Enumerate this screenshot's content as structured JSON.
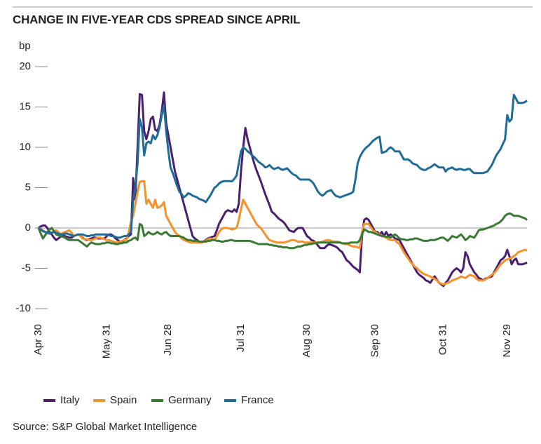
{
  "chart_data": {
    "type": "line",
    "title": "CHANGE IN FIVE-YEAR CDS SPREAD SINCE APRIL",
    "y_label": "bp",
    "source": "Source: S&P Global Market Intelligence",
    "ylim": [
      -10,
      20
    ],
    "yticks": [
      -10,
      -5,
      0,
      5,
      10,
      15,
      20
    ],
    "categories": [
      "Apr 30",
      null,
      null,
      null,
      null,
      null,
      null,
      null,
      null,
      null,
      null,
      null,
      null,
      null,
      null,
      null,
      null,
      null,
      null,
      null,
      null,
      null,
      null,
      null,
      null,
      null,
      null,
      null,
      null,
      null,
      null,
      "May 31",
      null,
      null,
      null,
      null,
      null,
      null,
      null,
      null,
      null,
      null,
      null,
      null,
      null,
      null,
      null,
      null,
      null,
      null,
      null,
      null,
      null,
      null,
      null,
      null,
      null,
      null,
      null,
      "Jun 28",
      null,
      null,
      null,
      null,
      null,
      null,
      null,
      null,
      null,
      null,
      null,
      null,
      null,
      null,
      null,
      null,
      null,
      null,
      null,
      null,
      null,
      null,
      null,
      null,
      null,
      null,
      null,
      null,
      null,
      null,
      null,
      null,
      "Jul 31",
      null,
      null,
      null,
      null,
      null,
      null,
      null,
      null,
      null,
      null,
      null,
      null,
      null,
      null,
      null,
      null,
      null,
      null,
      null,
      null,
      null,
      null,
      null,
      null,
      null,
      null,
      null,
      null,
      null,
      "Aug 30",
      null,
      null,
      null,
      null,
      null,
      null,
      null,
      null,
      null,
      null,
      null,
      null,
      null,
      null,
      null,
      null,
      null,
      null,
      null,
      null,
      null,
      null,
      null,
      null,
      null,
      null,
      null,
      null,
      null,
      null,
      "Sep 30",
      null,
      null,
      null,
      null,
      null,
      null,
      null,
      null,
      null,
      null,
      null,
      null,
      null,
      null,
      null,
      null,
      null,
      null,
      null,
      null,
      null,
      null,
      null,
      null,
      null,
      null,
      null,
      null,
      null,
      null,
      "Oct 31",
      null,
      null,
      null,
      null,
      null,
      null,
      null,
      null,
      null,
      null,
      null,
      null,
      null,
      null,
      null,
      null,
      null,
      null,
      null,
      null,
      null,
      null,
      null,
      null,
      null,
      null,
      null,
      null,
      "Nov 29",
      null,
      null,
      null,
      null,
      null,
      null,
      null,
      null,
      null
    ],
    "series": [
      {
        "name": "Italy",
        "color": "#4a1f6e",
        "values": [
          0,
          0.2,
          0.3,
          0.3,
          0,
          -0.5,
          -0.8,
          -1.2,
          -1.5,
          -1.3,
          -1.1,
          -1,
          -1,
          -1.1,
          -1.2,
          -1.2,
          -1,
          -0.9,
          -0.8,
          -1,
          -1.2,
          -1.4,
          -1.5,
          -1.4,
          -1.3,
          -1.2,
          -1.2,
          -1.3,
          -1.3,
          -1.3,
          -1.3,
          -1,
          -0.8,
          -0.8,
          -1,
          -1.3,
          -1.5,
          -1.7,
          -1.8,
          -1.5,
          -1.3,
          -1,
          -0.8,
          6.2,
          3.5,
          10,
          16.6,
          16.5,
          12,
          11,
          12,
          13.5,
          13.8,
          12.2,
          12,
          12.8,
          14.5,
          16.8,
          13,
          11.5,
          10,
          8.5,
          7,
          6,
          5,
          4,
          3,
          2,
          1,
          0,
          -1,
          -1.3,
          -1.5,
          -1.7,
          -1.8,
          -1.7,
          -1.5,
          -1.3,
          -1.2,
          -1.1,
          -1,
          -0.3,
          0.5,
          1,
          1.5,
          2,
          2.2,
          2.1,
          2,
          2.3,
          2,
          3,
          7,
          10,
          12.4,
          11,
          10,
          9,
          8,
          7.2,
          6.5,
          5.8,
          5,
          4.2,
          3.5,
          2.8,
          2,
          1.8,
          1.5,
          1.2,
          1,
          0.8,
          0.5,
          0.1,
          -0.3,
          -0.4,
          -0.5,
          -0.2,
          0,
          0,
          0,
          -0.5,
          -1,
          -1.2,
          -1.5,
          -1.6,
          -1.8,
          -2.2,
          -2.5,
          -2.5,
          -2.5,
          -2.2,
          -2,
          -2.1,
          -2.2,
          -2.3,
          -2.5,
          -2.8,
          -3,
          -3.5,
          -4,
          -4.2,
          -4.5,
          -4.8,
          -5,
          -5.2,
          -5.5,
          -1,
          1,
          1.2,
          1,
          0.5,
          0,
          -0.5,
          -0.5,
          -0.8,
          -0.5,
          -1,
          -0.5,
          -1,
          -0.8,
          -1,
          -1.3,
          -1.4,
          -1.5,
          -2,
          -2.5,
          -3,
          -3.5,
          -4,
          -4.5,
          -5,
          -5.5,
          -5.8,
          -6,
          -6.2,
          -6.5,
          -6.6,
          -6.8,
          -6.4,
          -6,
          -6.4,
          -6.8,
          -7,
          -7.2,
          -6.8,
          -6.5,
          -6,
          -5.5,
          -5.2,
          -5,
          -5.2,
          -5.5,
          -5,
          -3,
          -3.5,
          -4.5,
          -5,
          -5.5,
          -5.8,
          -6.2,
          -6.3,
          -6.5,
          -6.3,
          -6.2,
          -6.1,
          -6,
          -5.5,
          -5,
          -4.5,
          -4,
          -3.8,
          -3.5,
          -2.7,
          -3.5,
          -4.5,
          -4,
          -3.8,
          -4.5,
          -4.5,
          -4.5,
          -4.4,
          -4.3
        ]
      },
      {
        "name": "Spain",
        "color": "#f5922a",
        "values": [
          0,
          -0.1,
          -0.3,
          -0.5,
          -0.6,
          -0.7,
          -0.6,
          -0.4,
          -0.3,
          -0.5,
          -0.8,
          -0.6,
          -0.5,
          -0.4,
          -0.3,
          -0.6,
          -1,
          -0.9,
          -0.8,
          -1,
          -1.3,
          -1.4,
          -1.4,
          -1.5,
          -1.5,
          -1.4,
          -1.3,
          -1.2,
          -1.2,
          -1.3,
          -1.4,
          -1.5,
          -1.5,
          -1.6,
          -1.7,
          -1.8,
          -1.8,
          -1.7,
          -1.6,
          -1.5,
          -1.5,
          -0.5,
          0.8,
          1.5,
          3,
          4.5,
          5.7,
          5.8,
          5.8,
          3,
          3.5,
          3,
          2.5,
          3.5,
          2.5,
          2.6,
          2.8,
          3.2,
          1.5,
          1,
          0.5,
          0,
          -0.5,
          -0.8,
          -1,
          -1.3,
          -1.5,
          -1.6,
          -1.7,
          -1.8,
          -1.8,
          -1.8,
          -1.8,
          -1.8,
          -1.8,
          -1.7,
          -1.6,
          -1.4,
          -1.3,
          -1.4,
          -1.5,
          -1,
          -0.5,
          -0.2,
          0,
          0,
          0,
          -0.1,
          -0.2,
          -0.1,
          0,
          1,
          2.3,
          3.5,
          3,
          2.5,
          2,
          1.5,
          1,
          0.5,
          0.2,
          0,
          -0.4,
          -0.8,
          -1.2,
          -1.5,
          -1.6,
          -1.7,
          -1.8,
          -1.8,
          -1.8,
          -1.8,
          -1.8,
          -1.7,
          -1.6,
          -1.5,
          -1.5,
          -1.6,
          -1.7,
          -1.7,
          -1.7,
          -1.8,
          -1.8,
          -1.8,
          -1.8,
          -1.8,
          -1.8,
          -1.8,
          -1.8,
          -1.7,
          -1.6,
          -1.5,
          -1.5,
          -1.6,
          -1.7,
          -1.7,
          -1.7,
          -1.8,
          -1.9,
          -2,
          -2,
          -2.1,
          -2.2,
          -2.3,
          -2.3,
          -2.4,
          -2.5,
          -0.5,
          0.5,
          0.5,
          0.5,
          0.1,
          -0.3,
          -0.5,
          -0.7,
          -0.8,
          -1,
          -1.1,
          -1.2,
          -1.4,
          -1.5,
          -1.5,
          -1.5,
          -1.8,
          -2,
          -2.5,
          -3,
          -3.4,
          -3.8,
          -4.2,
          -4.5,
          -4.8,
          -5,
          -5.3,
          -5.5,
          -5.7,
          -5.8,
          -5.9,
          -6,
          -6.2,
          -6.3,
          -6.5,
          -6.8,
          -6.9,
          -7,
          -6.9,
          -6.8,
          -6.7,
          -6.5,
          -6.4,
          -6.3,
          -6.2,
          -6,
          -6.1,
          -6.2,
          -6,
          -5.8,
          -5.9,
          -6,
          -6.3,
          -6.5,
          -6.5,
          -6.5,
          -6.4,
          -6.2,
          -6,
          -5.8,
          -5.6,
          -5.3,
          -4.9,
          -4.5,
          -4.3,
          -4,
          -3.9,
          -3.8,
          -3.7,
          -3.5,
          -3.3,
          -3,
          -2.9,
          -2.8,
          -2.7,
          -2.8
        ]
      },
      {
        "name": "Germany",
        "color": "#3b7a35",
        "values": [
          0,
          -0.7,
          -1.3,
          -0.9,
          -0.5,
          -0.2,
          0,
          -0.4,
          -0.8,
          -0.9,
          -1,
          -1.1,
          -1.2,
          -1.4,
          -1.5,
          -1.5,
          -1.5,
          -1.5,
          -1.5,
          -1.7,
          -1.9,
          -2.1,
          -2.3,
          -2,
          -1.8,
          -1.9,
          -2,
          -2,
          -2,
          -1.9,
          -1.9,
          -1.8,
          -1.8,
          -1.9,
          -1.9,
          -2,
          -2,
          -1.9,
          -1.9,
          -1.8,
          -1.8,
          -1.6,
          -1.5,
          -1.3,
          -1.2,
          -1.5,
          0.5,
          0.3,
          -1,
          -0.8,
          -0.5,
          -0.7,
          -0.8,
          -0.7,
          -0.5,
          -0.7,
          -0.8,
          -0.6,
          -0.5,
          -0.8,
          -1,
          -1,
          -1,
          -1,
          -1,
          -1.1,
          -1.2,
          -1.4,
          -1.5,
          -1.5,
          -1.6,
          -1.6,
          -1.6,
          -1.7,
          -1.7,
          -1.7,
          -1.7,
          -1.6,
          -1.6,
          -1.5,
          -1.5,
          -1.6,
          -1.6,
          -1.7,
          -1.7,
          -1.6,
          -1.6,
          -1.5,
          -1.5,
          -1.6,
          -1.6,
          -1.6,
          -1.6,
          -1.6,
          -1.6,
          -1.6,
          -1.6,
          -1.7,
          -1.8,
          -1.9,
          -2,
          -2,
          -2,
          -2,
          -2,
          -2.1,
          -2.1,
          -2.2,
          -2.2,
          -2.3,
          -2.3,
          -2.4,
          -2.4,
          -2.4,
          -2.5,
          -2.5,
          -2.5,
          -2.4,
          -2.3,
          -2.3,
          -2.2,
          -2.1,
          -2.1,
          -2,
          -2,
          -1.9,
          -1.9,
          -1.8,
          -1.8,
          -1.8,
          -1.8,
          -1.8,
          -1.8,
          -1.8,
          -1.8,
          -1.8,
          -1.8,
          -1.8,
          -1.9,
          -1.9,
          -1.9,
          -1.9,
          -1.8,
          -1.8,
          -1.8,
          -1.8,
          -1.5,
          -0.8,
          -0.2,
          -0.3,
          -0.5,
          -0.5,
          -0.6,
          -0.7,
          -0.8,
          -0.9,
          -1,
          -1,
          -1.1,
          -1.1,
          -1.2,
          -1,
          -0.8,
          -1,
          -1.3,
          -1.4,
          -1.4,
          -1.5,
          -1.5,
          -1.4,
          -1.4,
          -1.3,
          -1.3,
          -1.4,
          -1.5,
          -1.6,
          -1.6,
          -1.6,
          -1.5,
          -1.5,
          -1.5,
          -1.4,
          -1.3,
          -1.2,
          -1.2,
          -1.4,
          -1.6,
          -1.3,
          -1,
          -1.1,
          -1.2,
          -1,
          -0.8,
          -1.1,
          -1.5,
          -1.3,
          -1,
          -1.1,
          -1.2,
          -0.8,
          -0.3,
          -0.2,
          -0.2,
          -0.1,
          0,
          0.1,
          0.2,
          0.3,
          0.5,
          0.6,
          0.8,
          1.1,
          1.5,
          1.7,
          1.8,
          1.7,
          1.5,
          1.5,
          1.5,
          1.4,
          1.3,
          1.2,
          1
        ]
      },
      {
        "name": "France",
        "color": "#1f6c98",
        "values": [
          0,
          -0.2,
          -0.4,
          -0.5,
          -0.6,
          -0.7,
          -0.6,
          -0.5,
          -0.6,
          -0.7,
          -0.8,
          -0.8,
          -0.7,
          -0.7,
          -0.8,
          -0.9,
          -1,
          -0.9,
          -0.8,
          -0.8,
          -0.8,
          -0.9,
          -1,
          -1,
          -0.9,
          -0.9,
          -0.8,
          -0.8,
          -0.8,
          -0.8,
          -0.8,
          -0.8,
          -0.9,
          -1,
          -1,
          -1.1,
          -1.2,
          -1.2,
          -1.1,
          -1,
          -1,
          -0.8,
          -0.5,
          3.5,
          5,
          8,
          13.5,
          12.5,
          9,
          10.5,
          10.7,
          10.5,
          11.5,
          11,
          11.5,
          12.5,
          14,
          15.2,
          12,
          9.5,
          7.5,
          6.8,
          6,
          5.2,
          4.5,
          4.2,
          3.8,
          4,
          4.3,
          4.2,
          4,
          3.9,
          3.8,
          3.6,
          3.5,
          3.4,
          3.2,
          3.6,
          4,
          4.5,
          5,
          5.2,
          5.5,
          5.7,
          5.8,
          5.8,
          5.8,
          5.8,
          5.8,
          6.1,
          6.5,
          8,
          9.5,
          10,
          9.8,
          9.5,
          9.3,
          9,
          8.8,
          8.5,
          8.2,
          8,
          7.8,
          7.5,
          7.6,
          7.8,
          7.5,
          7.3,
          7.4,
          7.5,
          7.3,
          7.2,
          7.3,
          7.4,
          7.1,
          6.8,
          6.6,
          6.5,
          6.2,
          6,
          6,
          6,
          6,
          6,
          5.8,
          5.5,
          5,
          4.5,
          4.2,
          4,
          4.2,
          4.5,
          4.6,
          4.7,
          4.3,
          4,
          3.9,
          3.8,
          3.9,
          4,
          4.1,
          4.2,
          4.3,
          4.5,
          6,
          8,
          8.8,
          9.3,
          9.7,
          10,
          10.2,
          10.5,
          10.8,
          11,
          11.2,
          11.3,
          9.3,
          9.4,
          9.5,
          9.8,
          10,
          9.8,
          9.5,
          9.5,
          9.5,
          9,
          8.5,
          8.5,
          8.5,
          8.3,
          8,
          7.9,
          7.8,
          7.5,
          7.3,
          7.2,
          7.2,
          7.4,
          7.5,
          7.7,
          7.9,
          7.7,
          7.5,
          7.5,
          7.5,
          7,
          7.3,
          7.4,
          7.5,
          7.3,
          7.2,
          7.3,
          7.3,
          7.2,
          7.2,
          7.3,
          7.3,
          7,
          6.8,
          6.8,
          6.8,
          6.8,
          6.8,
          6.9,
          7,
          7.4,
          7.8,
          8.4,
          9,
          9.4,
          9.8,
          10.4,
          11,
          14,
          13.2,
          13.5,
          16.5,
          16,
          15.5,
          15.5,
          15.5,
          15.6,
          15.8
        ]
      }
    ]
  }
}
